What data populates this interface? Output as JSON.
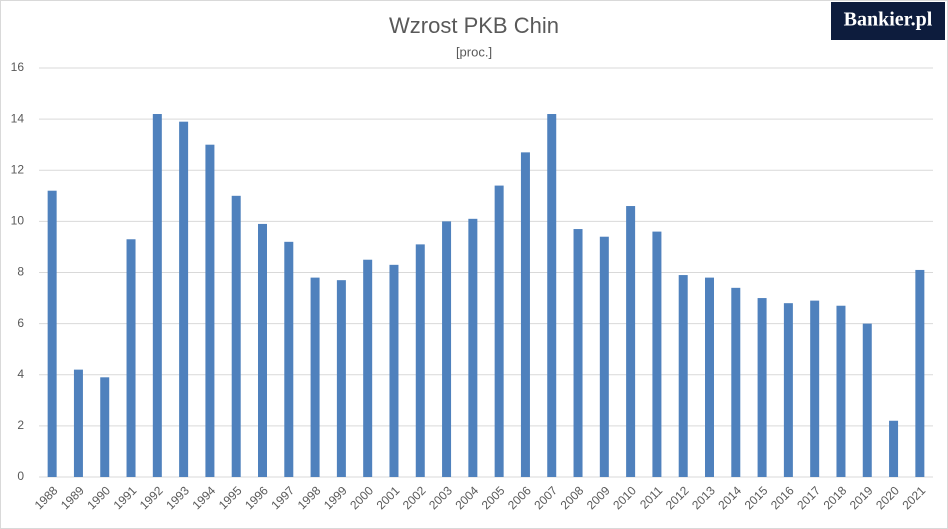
{
  "chart_data": {
    "type": "bar",
    "title": "Wzrost PKB Chin",
    "subtitle": "[proc.]",
    "logo": "Bankier.pl",
    "categories": [
      "1988",
      "1989",
      "1990",
      "1991",
      "1992",
      "1993",
      "1994",
      "1995",
      "1996",
      "1997",
      "1998",
      "1999",
      "2000",
      "2001",
      "2002",
      "2003",
      "2004",
      "2005",
      "2006",
      "2007",
      "2008",
      "2009",
      "2010",
      "2011",
      "2012",
      "2013",
      "2014",
      "2015",
      "2016",
      "2017",
      "2018",
      "2019",
      "2020",
      "2021"
    ],
    "values": [
      11.2,
      4.2,
      3.9,
      9.3,
      14.2,
      13.9,
      13.0,
      11.0,
      9.9,
      9.2,
      7.8,
      7.7,
      8.5,
      8.3,
      9.1,
      10.0,
      10.1,
      11.4,
      12.7,
      14.2,
      9.7,
      9.4,
      10.6,
      9.6,
      7.9,
      7.8,
      7.4,
      7.0,
      6.8,
      6.9,
      6.7,
      6.0,
      2.2,
      8.1
    ],
    "color": "#4f81bd",
    "ylim": [
      0,
      16
    ],
    "yticks": [
      0,
      2,
      4,
      6,
      8,
      10,
      12,
      14,
      16
    ],
    "grid": true
  }
}
